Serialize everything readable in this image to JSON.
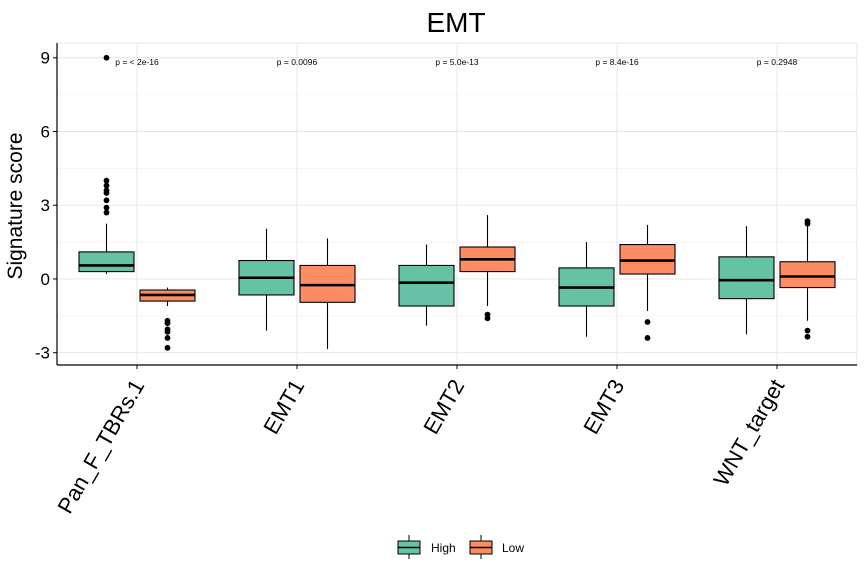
{
  "chart_data": {
    "type": "box",
    "title": "EMT",
    "xlabel": "",
    "ylabel": "Signature score",
    "ylim": [
      -3.5,
      9.6
    ],
    "yticks": [
      -3,
      0,
      3,
      6,
      9
    ],
    "ytick_labels": [
      "-3",
      "0",
      "3",
      "6",
      "9"
    ],
    "grid": true,
    "legend_position": "bottom",
    "categories": [
      "Pan_F_TBRs.1",
      "EMT1",
      "EMT2",
      "EMT3",
      "WNT_target"
    ],
    "annotations": [
      "p = < 2e-16",
      "p = 0.0096",
      "p = 5.0e-13",
      "p = 8.4e-16",
      "p = 0.2948"
    ],
    "series": [
      {
        "name": "High",
        "color": "#66c2a5",
        "boxes": [
          {
            "whisker_low": 0.2,
            "q1": 0.3,
            "median": 0.55,
            "q3": 1.1,
            "whisker_high": 2.25,
            "outliers": [
              2.7,
              2.9,
              3.2,
              3.5,
              3.6,
              3.8,
              4.0,
              9.0
            ]
          },
          {
            "whisker_low": -2.1,
            "q1": -0.65,
            "median": 0.05,
            "q3": 0.75,
            "whisker_high": 2.05,
            "outliers": []
          },
          {
            "whisker_low": -1.9,
            "q1": -1.1,
            "median": -0.15,
            "q3": 0.55,
            "whisker_high": 1.4,
            "outliers": []
          },
          {
            "whisker_low": -2.35,
            "q1": -1.1,
            "median": -0.35,
            "q3": 0.45,
            "whisker_high": 1.5,
            "outliers": []
          },
          {
            "whisker_low": -2.25,
            "q1": -0.8,
            "median": -0.05,
            "q3": 0.9,
            "whisker_high": 2.15,
            "outliers": []
          }
        ]
      },
      {
        "name": "Low",
        "color": "#fc8d62",
        "boxes": [
          {
            "whisker_low": -1.1,
            "q1": -0.9,
            "median": -0.65,
            "q3": -0.45,
            "whisker_high": -0.35,
            "outliers": [
              -1.7,
              -1.8,
              -2.05,
              -2.15,
              -2.4,
              -2.8
            ]
          },
          {
            "whisker_low": -2.85,
            "q1": -0.95,
            "median": -0.25,
            "q3": 0.55,
            "whisker_high": 1.65,
            "outliers": []
          },
          {
            "whisker_low": -1.1,
            "q1": 0.3,
            "median": 0.8,
            "q3": 1.3,
            "whisker_high": 2.6,
            "outliers": [
              -1.45,
              -1.6
            ]
          },
          {
            "whisker_low": -1.3,
            "q1": 0.2,
            "median": 0.75,
            "q3": 1.4,
            "whisker_high": 2.2,
            "outliers": [
              -1.75,
              -2.4
            ]
          },
          {
            "whisker_low": -1.7,
            "q1": -0.35,
            "median": 0.1,
            "q3": 0.7,
            "whisker_high": 2.15,
            "outliers": [
              -2.1,
              -2.35,
              2.25,
              2.35
            ]
          }
        ]
      }
    ]
  }
}
